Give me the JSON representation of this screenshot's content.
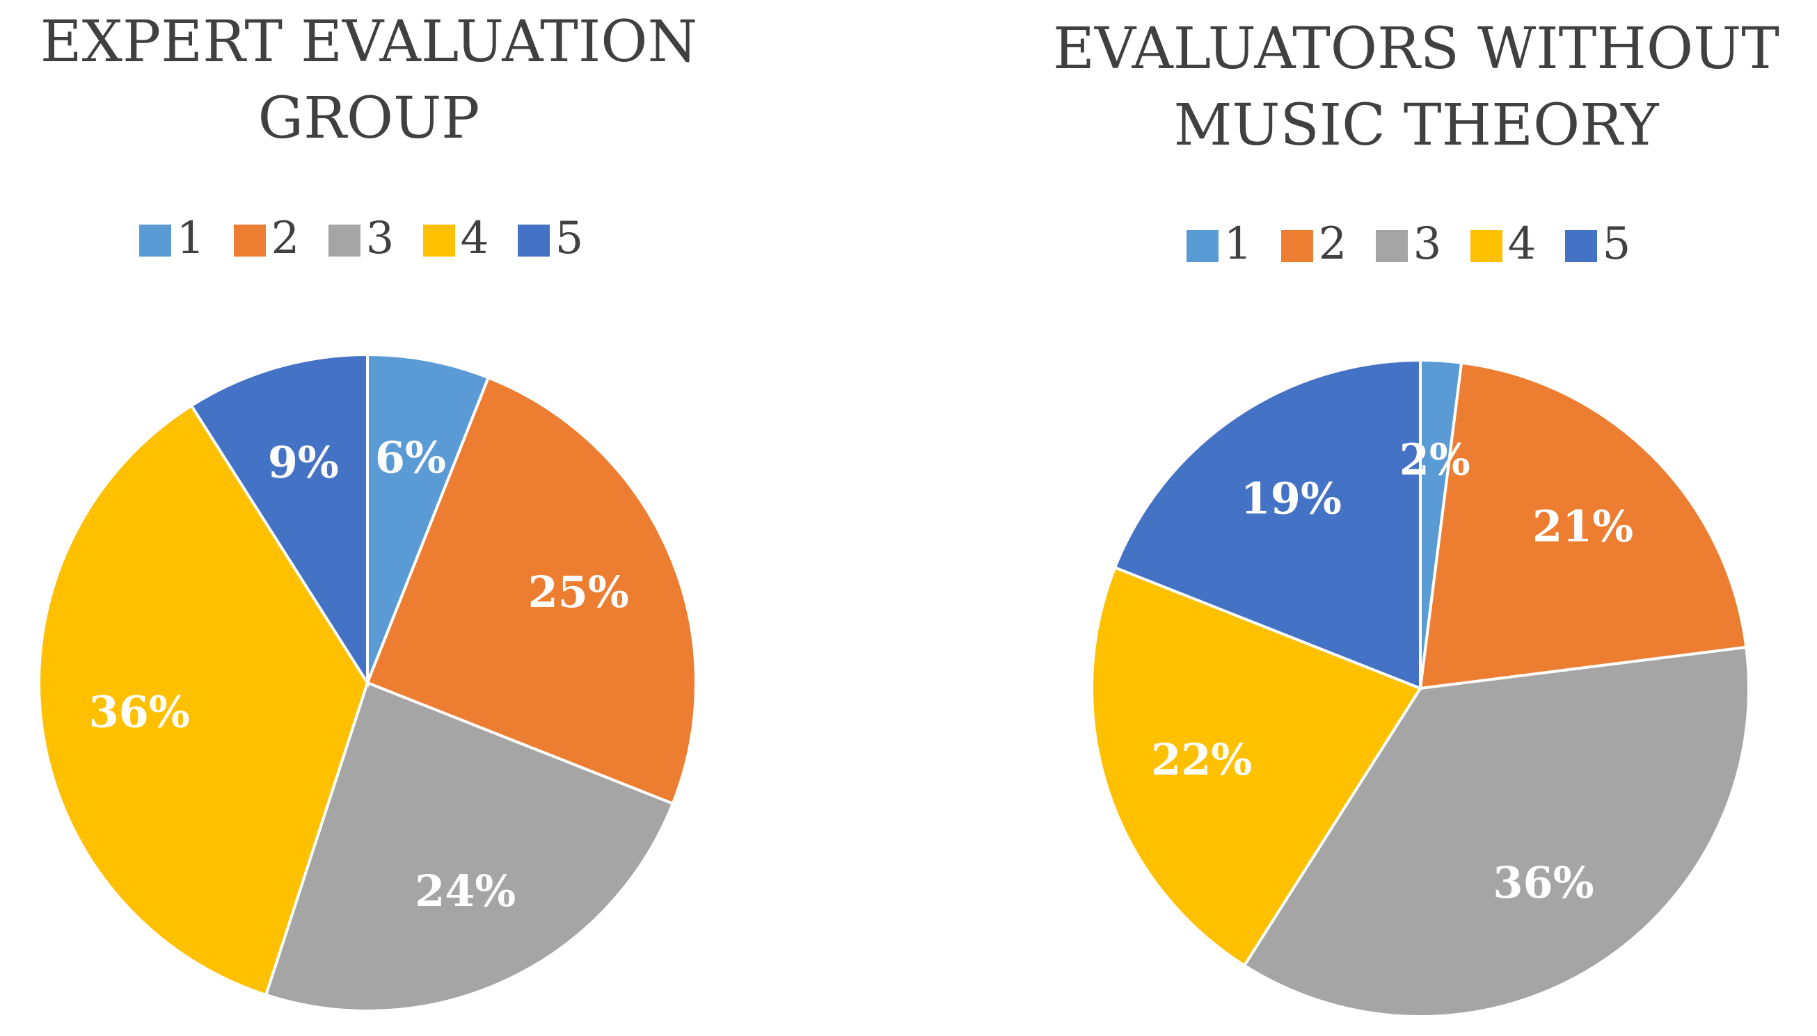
{
  "chart_data": [
    {
      "type": "pie",
      "title_lines": [
        "EXPERT EVALUATION",
        "GROUP"
      ],
      "legend": [
        "1",
        "2",
        "3",
        "4",
        "5"
      ],
      "categories": [
        "1",
        "2",
        "3",
        "4",
        "5"
      ],
      "values": [
        6,
        25,
        24,
        36,
        9
      ],
      "labels": [
        "6%",
        "25%",
        "24%",
        "36%",
        "9%"
      ],
      "colors": [
        "#5B9BD5",
        "#ED7D31",
        "#A5A5A5",
        "#FFC000",
        "#4472C4"
      ],
      "legend_position": "top"
    },
    {
      "type": "pie",
      "title_lines": [
        "EVALUATORS WITHOUT",
        "MUSIC THEORY"
      ],
      "legend": [
        "1",
        "2",
        "3",
        "4",
        "5"
      ],
      "categories": [
        "1",
        "2",
        "3",
        "4",
        "5"
      ],
      "values": [
        2,
        21,
        36,
        22,
        19
      ],
      "labels": [
        "2%",
        "21%",
        "36%",
        "22%",
        "19%"
      ],
      "colors": [
        "#5B9BD5",
        "#ED7D31",
        "#A5A5A5",
        "#FFC000",
        "#4472C4"
      ],
      "legend_position": "top"
    }
  ]
}
